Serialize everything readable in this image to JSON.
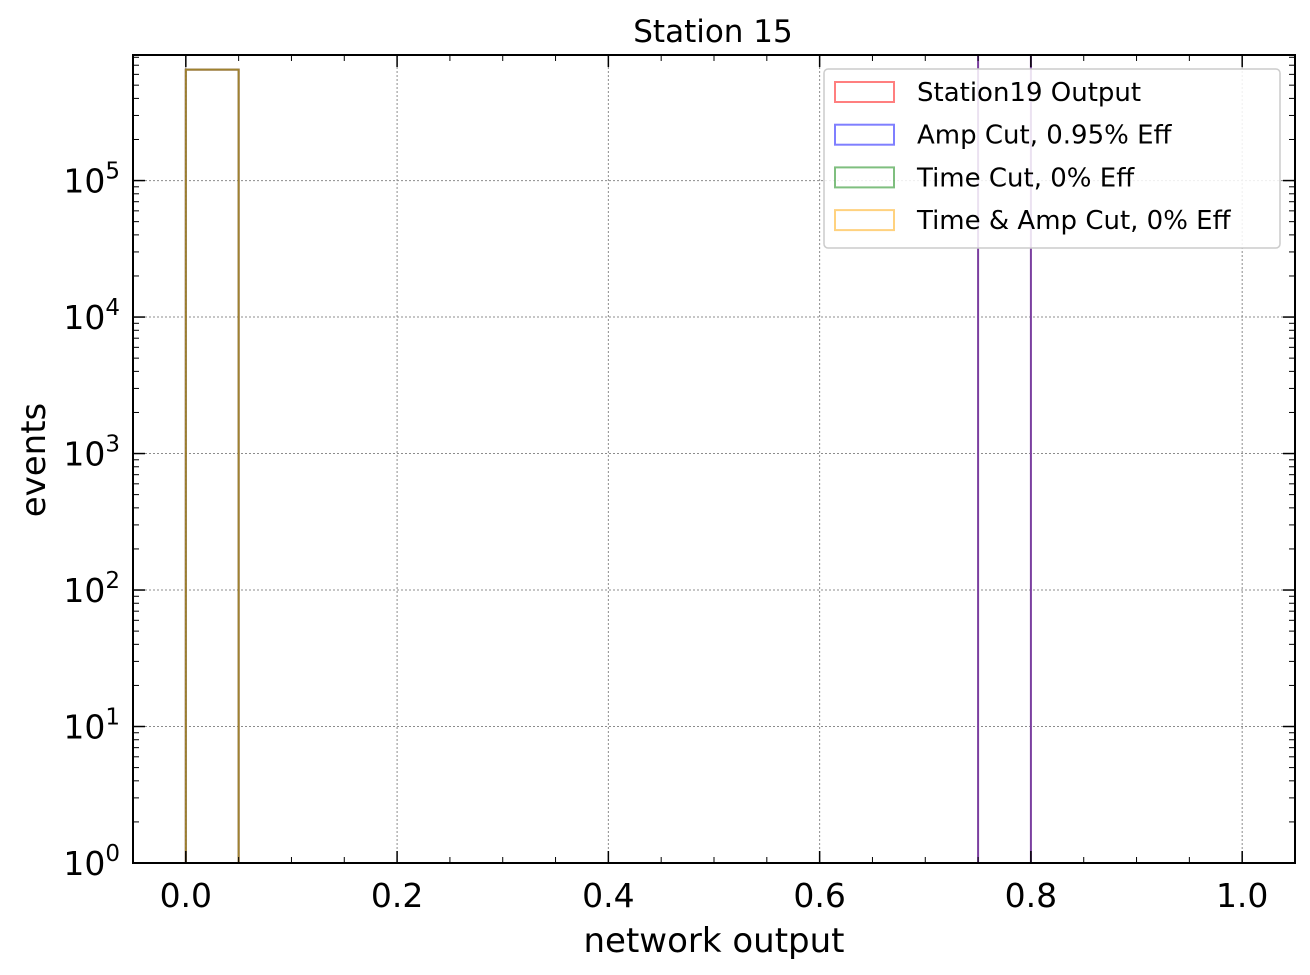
{
  "chart_data": {
    "type": "bar",
    "title": "Station 15",
    "xlabel": "network output",
    "ylabel": "events",
    "xlim": [
      -0.05,
      1.05
    ],
    "ylim_log10": [
      0,
      5.92
    ],
    "yscale": "log",
    "grid": true,
    "x_ticks": [
      "0.0",
      "0.2",
      "0.4",
      "0.6",
      "0.8",
      "1.0"
    ],
    "y_ticks": [
      {
        "base": "10",
        "exp": "0"
      },
      {
        "base": "10",
        "exp": "1"
      },
      {
        "base": "10",
        "exp": "2"
      },
      {
        "base": "10",
        "exp": "3"
      },
      {
        "base": "10",
        "exp": "4"
      },
      {
        "base": "10",
        "exp": "5"
      }
    ],
    "legend_position": "top-right",
    "series": [
      {
        "name": "Station19 Output",
        "color": "#ff0000",
        "bins": [
          [
            0.0,
            0.05,
            650000
          ]
        ]
      },
      {
        "name": "Amp Cut, 0.95% Eff",
        "color": "#0000ff",
        "bins": [
          [
            0.0,
            0.05,
            650000
          ]
        ]
      },
      {
        "name": "Time Cut, 0% Eff",
        "color": "#008000",
        "bins": [
          [
            0.0,
            0.05,
            650000
          ]
        ]
      },
      {
        "name": "Time & Amp Cut, 0% Eff",
        "color": "#ffa500",
        "bins": [
          [
            0.0,
            0.05,
            650000
          ]
        ]
      }
    ],
    "cut_lines": [
      {
        "x": 0.75,
        "color": "#7b3fa0"
      },
      {
        "x": 0.8,
        "color": "#7b3fa0"
      }
    ],
    "bar_outline_color": "#808032"
  }
}
